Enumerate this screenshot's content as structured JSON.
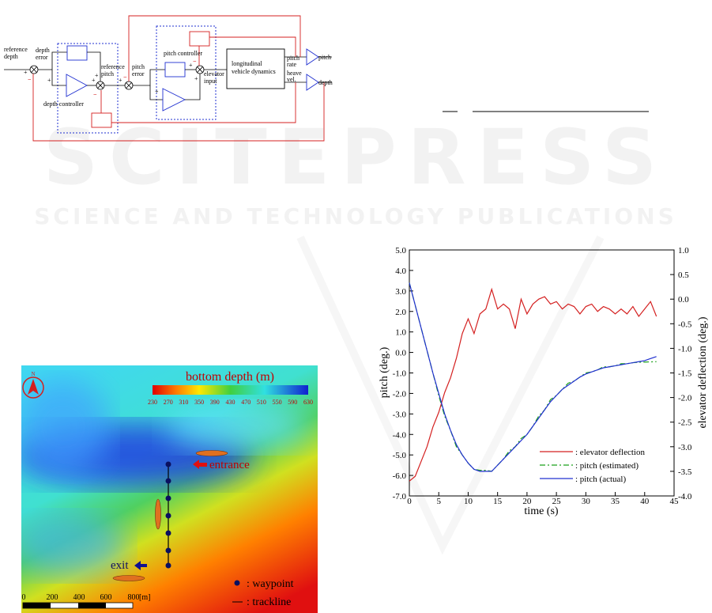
{
  "watermark": {
    "title": "SCITEPRESS",
    "subtitle": "SCIENCE AND TECHNOLOGY PUBLICATIONS"
  },
  "diagram": {
    "labels": {
      "reference_depth": [
        "reference",
        "depth"
      ],
      "depth_error": [
        "depth",
        "error"
      ],
      "depth_controller": "depth controller",
      "reference_pitch": [
        "reference",
        "pitch"
      ],
      "pitch_error": [
        "pitch",
        "error"
      ],
      "pitch_controller": "pitch controller",
      "elevator_input": [
        "elevator",
        "input"
      ],
      "dynamics": [
        "longitudinal",
        "vehicle dynamics"
      ],
      "pitch_rate": [
        "pitch",
        "rate"
      ],
      "heave_vel": [
        "heave",
        "vel."
      ],
      "pitch": "pitch",
      "depth": "depth"
    },
    "signs": [
      "+",
      "−",
      "+",
      "+",
      "−",
      "+",
      "−",
      "+",
      "+",
      "−",
      "+",
      "+"
    ]
  },
  "map": {
    "colorbar_title": "bottom depth (m)",
    "colorbar_ticks": [
      230,
      270,
      310,
      350,
      390,
      430,
      470,
      510,
      550,
      590,
      630
    ],
    "entrance": "entrance",
    "exit": "exit",
    "waypoint": ": waypoint",
    "trackline": ": trackline",
    "north": "N",
    "scale": [
      "0",
      "200",
      "400",
      "600",
      "800",
      "[m]"
    ]
  },
  "chart_data": {
    "type": "line",
    "xlabel": "time (s)",
    "ylabel": "pitch (deg.)",
    "y2label": "elevator deflection (deg.)",
    "x": [
      0,
      1,
      2,
      3,
      4,
      5,
      6,
      7,
      8,
      9,
      10,
      11,
      12,
      13,
      14,
      15,
      16,
      17,
      18,
      19,
      20,
      21,
      22,
      23,
      24,
      25,
      26,
      27,
      28,
      29,
      30,
      31,
      32,
      33,
      34,
      35,
      36,
      37,
      38,
      39,
      40,
      41,
      42
    ],
    "xlim": [
      0,
      45
    ],
    "xticks": [
      0,
      5,
      10,
      15,
      20,
      25,
      30,
      35,
      40,
      45
    ],
    "ylim": [
      -7,
      5
    ],
    "yticks": [
      {
        "value": 5,
        "label": "5.0"
      },
      {
        "value": 4,
        "label": "4.0"
      },
      {
        "value": 3,
        "label": "3.0"
      },
      {
        "value": 2,
        "label": "2.0"
      },
      {
        "value": 1,
        "label": "1.0"
      },
      {
        "value": 0,
        "label": "0.0"
      },
      {
        "value": -1,
        "label": "-1.0"
      },
      {
        "value": -2,
        "label": "-2.0"
      },
      {
        "value": -3,
        "label": "-3.0"
      },
      {
        "value": -4,
        "label": "-4.0"
      },
      {
        "value": -5,
        "label": "-5.0"
      },
      {
        "value": -6,
        "label": "-6.0"
      },
      {
        "value": -7,
        "label": "-7.0"
      }
    ],
    "y2lim": [
      -4,
      1
    ],
    "y2ticks": [
      {
        "value": 1,
        "label": "1.0"
      },
      {
        "value": 0.5,
        "label": "0.5"
      },
      {
        "value": 0,
        "label": "0.0"
      },
      {
        "value": -0.5,
        "label": "-0.5"
      },
      {
        "value": -1,
        "label": "-1.0"
      },
      {
        "value": -1.5,
        "label": "-1.5"
      },
      {
        "value": -2,
        "label": "-2.0"
      },
      {
        "value": -2.5,
        "label": "-2.5"
      },
      {
        "value": -3,
        "label": "-3.0"
      },
      {
        "value": -3.5,
        "label": "-3.5"
      },
      {
        "value": -4,
        "label": "-4.0"
      }
    ],
    "series": [
      {
        "name": ": elevator deflection",
        "color": "#d42020",
        "axis": "y2",
        "values": [
          -3.7,
          -3.6,
          -3.3,
          -3.0,
          -2.6,
          -2.3,
          -1.9,
          -1.6,
          -1.2,
          -0.7,
          -0.4,
          -0.7,
          -0.3,
          -0.2,
          0.2,
          -0.2,
          -0.1,
          -0.2,
          -0.6,
          0.0,
          -0.3,
          -0.1,
          0.0,
          0.05,
          -0.1,
          -0.05,
          -0.2,
          -0.1,
          -0.15,
          -0.3,
          -0.15,
          -0.1,
          -0.25,
          -0.15,
          -0.2,
          -0.3,
          -0.2,
          -0.3,
          -0.15,
          -0.35,
          -0.2,
          -0.05,
          -0.35
        ]
      },
      {
        "name": ": pitch (estimated)",
        "color": "#1aa01a",
        "dash": "7,3,2,3",
        "values": [
          3.4,
          2.3,
          1.2,
          0.1,
          -1.0,
          -2.1,
          -3.1,
          -3.8,
          -4.6,
          -5.0,
          -5.4,
          -5.7,
          -5.75,
          -5.75,
          -5.8,
          -5.5,
          -5.2,
          -4.8,
          -4.6,
          -4.2,
          -4.0,
          -3.6,
          -3.1,
          -2.8,
          -2.3,
          -2.1,
          -1.8,
          -1.5,
          -1.4,
          -1.2,
          -1.0,
          -0.95,
          -0.85,
          -0.7,
          -0.7,
          -0.65,
          -0.55,
          -0.55,
          -0.5,
          -0.48,
          -0.47,
          -0.46,
          -0.45
        ]
      },
      {
        "name": ": pitch (actual)",
        "color": "#2030d0",
        "values": [
          3.4,
          2.3,
          1.2,
          0.1,
          -1.0,
          -2.0,
          -3.0,
          -3.8,
          -4.5,
          -5.0,
          -5.4,
          -5.7,
          -5.8,
          -5.8,
          -5.8,
          -5.5,
          -5.2,
          -4.9,
          -4.6,
          -4.3,
          -4.0,
          -3.6,
          -3.2,
          -2.8,
          -2.4,
          -2.1,
          -1.8,
          -1.6,
          -1.4,
          -1.2,
          -1.05,
          -0.95,
          -0.85,
          -0.75,
          -0.7,
          -0.65,
          -0.6,
          -0.55,
          -0.5,
          -0.45,
          -0.4,
          -0.3,
          -0.2
        ]
      }
    ]
  }
}
